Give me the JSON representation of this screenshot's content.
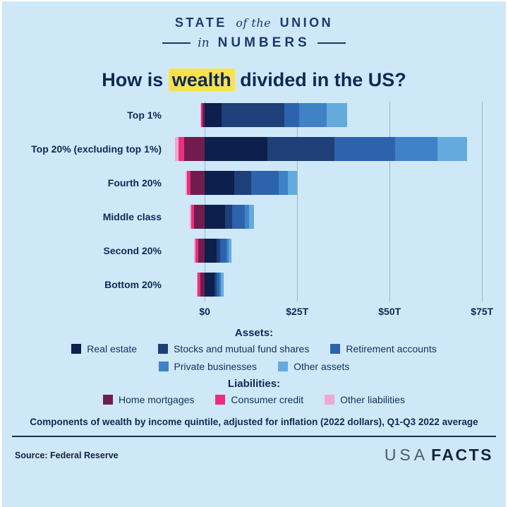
{
  "header": {
    "line1_left": "STATE",
    "line1_mid": "of the",
    "line1_right": "UNION",
    "line2_pre": "in",
    "line2_main": "NUMBERS"
  },
  "title": {
    "pre": "How is ",
    "highlight": "wealth",
    "post": " divided in the US?"
  },
  "chart_data": {
    "type": "bar",
    "orientation": "horizontal",
    "stacked": true,
    "title": "How is wealth divided in the US?",
    "categories": [
      "Top 1%",
      "Top 20% (excluding top 1%)",
      "Fourth 20%",
      "Middle class",
      "Second 20%",
      "Bottom 20%"
    ],
    "units": "trillions of dollars",
    "x_axis": {
      "range": [
        -9,
        78
      ],
      "ticks": [
        0,
        25,
        50,
        75
      ],
      "tick_labels": [
        "$0",
        "$25T",
        "$50T",
        "$75T"
      ],
      "grid": true
    },
    "series": [
      {
        "name": "Real estate",
        "side": "asset",
        "color": "#0d1f4c",
        "values": [
          4.5,
          17.0,
          8.0,
          5.5,
          3.2,
          2.6
        ]
      },
      {
        "name": "Stocks and mutual fund shares",
        "side": "asset",
        "color": "#1e3f77",
        "values": [
          17.0,
          18.0,
          4.5,
          2.0,
          1.0,
          0.6
        ]
      },
      {
        "name": "Retirement accounts",
        "side": "asset",
        "color": "#2d62ad",
        "values": [
          4.0,
          16.5,
          7.5,
          3.3,
          1.6,
          0.7
        ]
      },
      {
        "name": "Private businesses",
        "side": "asset",
        "color": "#3f83c6",
        "values": [
          7.5,
          11.5,
          2.5,
          1.2,
          0.6,
          0.5
        ]
      },
      {
        "name": "Other assets",
        "side": "asset",
        "color": "#64aadd",
        "values": [
          5.5,
          8.0,
          2.5,
          1.3,
          0.8,
          0.7
        ]
      },
      {
        "name": "Home mortgages",
        "side": "liability",
        "color": "#701d4e",
        "values": [
          0.6,
          5.5,
          3.8,
          2.8,
          1.8,
          1.2
        ]
      },
      {
        "name": "Consumer credit",
        "side": "liability",
        "color": "#e8307c",
        "values": [
          0.3,
          1.5,
          1.0,
          0.9,
          0.8,
          0.8
        ]
      },
      {
        "name": "Other liabilities",
        "side": "liability",
        "color": "#efa8d4",
        "values": [
          0.2,
          1.0,
          0.4,
          0.3,
          0.2,
          0.2
        ]
      }
    ],
    "legend_position": "bottom"
  },
  "legend": {
    "assets_label": "Assets:",
    "liabilities_label": "Liabilities:"
  },
  "footnote": "Components of wealth by income quintile, adjusted for inflation (2022 dollars), Q1-Q3 2022 average",
  "source": "Source: Federal Reserve",
  "logo": {
    "usa": "USA",
    "facts": "FACTS"
  }
}
